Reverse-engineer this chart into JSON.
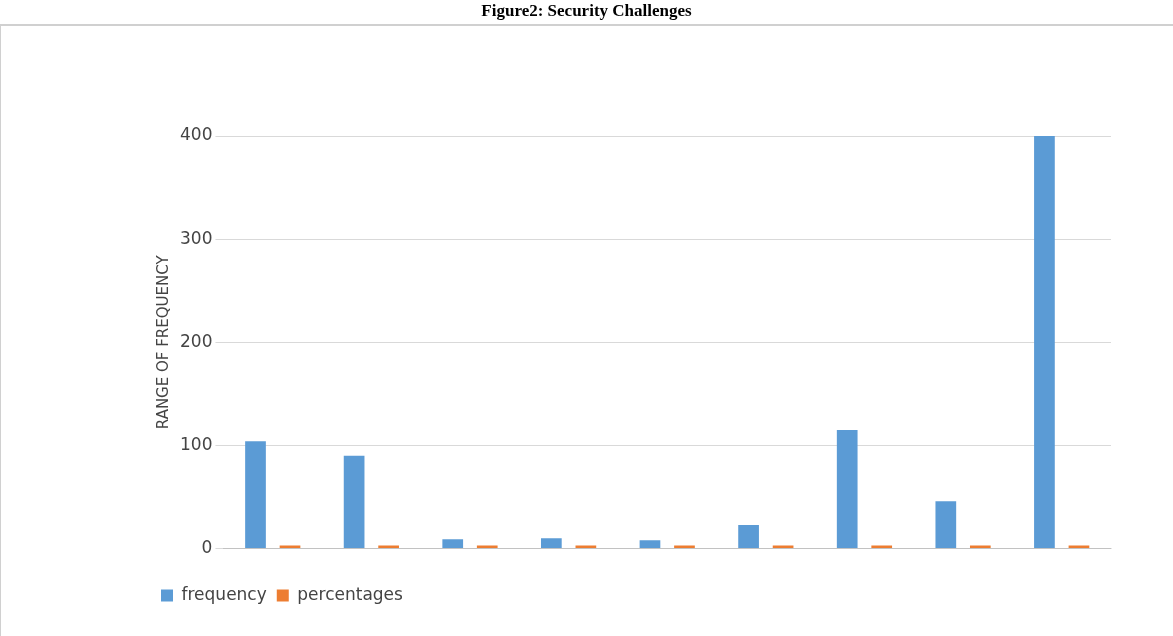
{
  "chart_data": {
    "type": "bar",
    "title": "Figure2: Security Challenges",
    "ylabel": "RANGE OF FREQUENCY",
    "categories": [
      null,
      null,
      null,
      null,
      null,
      null,
      null,
      null,
      null
    ],
    "series": [
      {
        "name": "frequency",
        "color": "#5b9bd5",
        "values": [
          104,
          90,
          9,
          10,
          8,
          23,
          115,
          46,
          400
        ]
      },
      {
        "name": "percentages",
        "color": "#ed7d31",
        "values": [
          0,
          0,
          0,
          0,
          0,
          0,
          0,
          0,
          0
        ]
      }
    ],
    "ylim": [
      0,
      400
    ],
    "yticks": [
      0,
      100,
      200,
      300,
      400
    ],
    "grid": "y",
    "legend": "bottom left"
  }
}
